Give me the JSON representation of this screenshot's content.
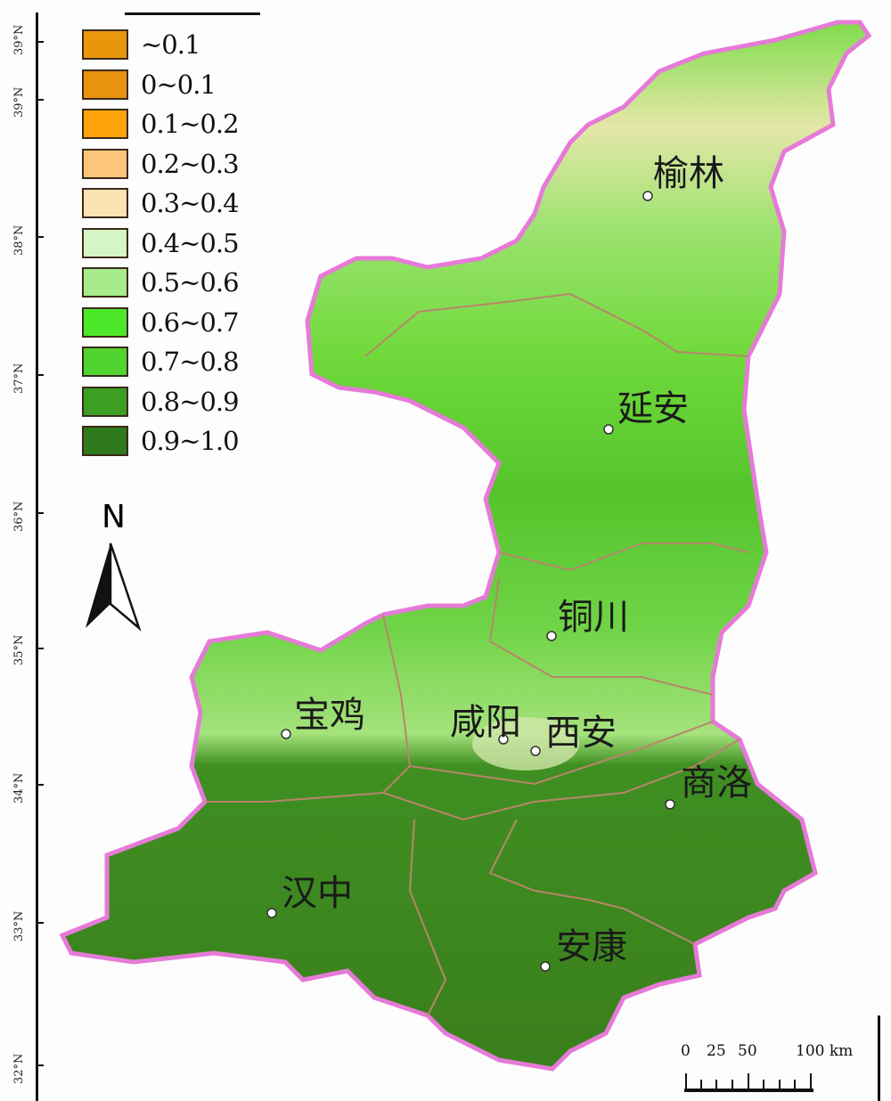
{
  "latitude_labels": [
    "39°N",
    "39°N",
    "38°N",
    "37°N",
    "36°N",
    "35°N",
    "34°N",
    "33°N",
    "32°N"
  ],
  "legend": [
    {
      "label": "~0.1",
      "color": "#e8960c"
    },
    {
      "label": "0~0.1",
      "color": "#e8930e"
    },
    {
      "label": "0.1~0.2",
      "color": "#fca40a"
    },
    {
      "label": "0.2~0.3",
      "color": "#fbc57c"
    },
    {
      "label": "0.3~0.4",
      "color": "#fde2b4"
    },
    {
      "label": "0.4~0.5",
      "color": "#d6f5c4"
    },
    {
      "label": "0.5~0.6",
      "color": "#a6ec8a"
    },
    {
      "label": "0.6~0.7",
      "color": "#4ee82a"
    },
    {
      "label": "0.7~0.8",
      "color": "#52d42e"
    },
    {
      "label": "0.8~0.9",
      "color": "#3d9e24"
    },
    {
      "label": "0.9~1.0",
      "color": "#2f7a1c"
    }
  ],
  "north_arrow": {
    "letter": "N"
  },
  "cities": [
    "榆林",
    "延安",
    "铜川",
    "宝鸡",
    "咸阳",
    "西安",
    "商洛",
    "汉中",
    "安康"
  ],
  "scale_bar": {
    "labels": [
      "0",
      "25",
      "50",
      "100 km"
    ]
  },
  "colors": {
    "boundary": "#e67ad8",
    "prefecture_border": "#b8866a"
  }
}
